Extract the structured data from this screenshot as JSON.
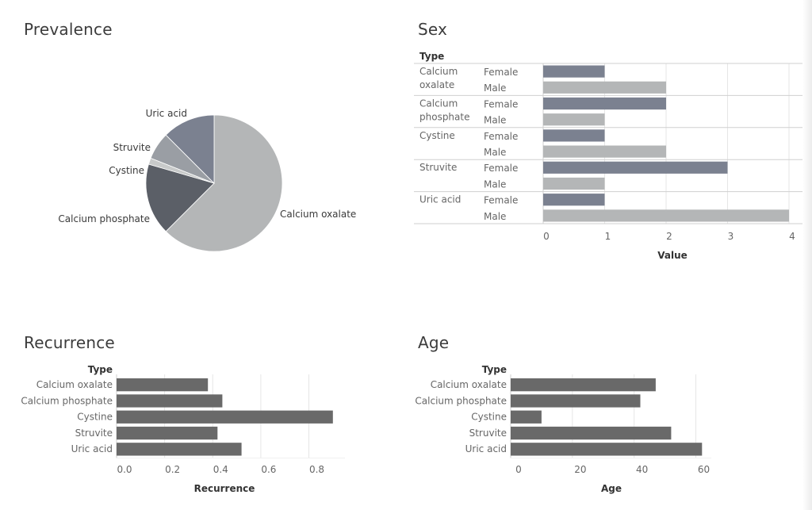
{
  "colors": {
    "female": "#7b8190",
    "male": "#b4b6b7",
    "bar_dark": "#696969",
    "pie": [
      "#b4b6b7",
      "#5b5f67",
      "#c8caca",
      "#9a9ea4",
      "#7b8190"
    ],
    "grid": "#e6e6e6",
    "axis": "#cfcfcf"
  },
  "chart_data": [
    {
      "id": "prevalence",
      "type": "pie",
      "title": "Prevalence",
      "slices": [
        {
          "label": "Calcium oxalate",
          "value": 62.5
        },
        {
          "label": "Calcium phosphate",
          "value": 17
        },
        {
          "label": "Cystine",
          "value": 1.5
        },
        {
          "label": "Struvite",
          "value": 6.5
        },
        {
          "label": "Uric acid",
          "value": 12.5
        }
      ]
    },
    {
      "id": "sex",
      "type": "bar",
      "title": "Sex",
      "row_header": "Type",
      "xlabel": "Value",
      "xlim": [
        0,
        4
      ],
      "xticks": [
        "0",
        "1",
        "2",
        "3",
        "4"
      ],
      "groups": [
        {
          "type_lines": [
            "Calcium",
            "oxalate"
          ],
          "rows": [
            {
              "sex": "Female",
              "value": 1
            },
            {
              "sex": "Male",
              "value": 2
            }
          ]
        },
        {
          "type_lines": [
            "Calcium",
            "phosphate"
          ],
          "rows": [
            {
              "sex": "Female",
              "value": 2
            },
            {
              "sex": "Male",
              "value": 1
            }
          ]
        },
        {
          "type_lines": [
            "Cystine"
          ],
          "rows": [
            {
              "sex": "Female",
              "value": 1
            },
            {
              "sex": "Male",
              "value": 2
            }
          ]
        },
        {
          "type_lines": [
            "Struvite"
          ],
          "rows": [
            {
              "sex": "Female",
              "value": 3
            },
            {
              "sex": "Male",
              "value": 1
            }
          ]
        },
        {
          "type_lines": [
            "Uric acid"
          ],
          "rows": [
            {
              "sex": "Female",
              "value": 1
            },
            {
              "sex": "Male",
              "value": 4
            }
          ]
        }
      ]
    },
    {
      "id": "recurrence",
      "type": "bar",
      "title": "Recurrence",
      "row_header": "Type",
      "xlabel": "Recurrence",
      "xlim": [
        0,
        0.95
      ],
      "xticks": [
        "0.0",
        "0.2",
        "0.4",
        "0.6",
        "0.8"
      ],
      "categories": [
        "Calcium oxalate",
        "Calcium phosphate",
        "Cystine",
        "Struvite",
        "Uric acid"
      ],
      "values": [
        0.38,
        0.44,
        0.9,
        0.42,
        0.52
      ]
    },
    {
      "id": "age",
      "type": "bar",
      "title": "Age",
      "row_header": "Type",
      "xlabel": "Age",
      "xlim": [
        0,
        65
      ],
      "xticks": [
        "0",
        "20",
        "40",
        "60"
      ],
      "categories": [
        "Calcium oxalate",
        "Calcium phosphate",
        "Cystine",
        "Struvite",
        "Uric acid"
      ],
      "values": [
        47,
        42,
        10,
        52,
        62
      ]
    }
  ]
}
